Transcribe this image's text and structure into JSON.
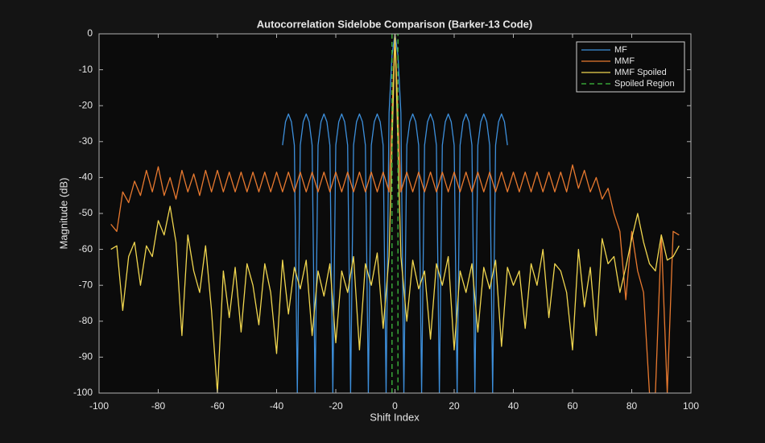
{
  "chart_data": {
    "type": "line",
    "title": "Autocorrelation Sidelobe Comparison (Barker-13 Code)",
    "xlabel": "Shift Index",
    "ylabel": "Magnitude (dB)",
    "xlim": [
      -100,
      100
    ],
    "ylim": [
      -100,
      0
    ],
    "xticks": [
      -100,
      -80,
      -60,
      -40,
      -20,
      0,
      20,
      40,
      60,
      80,
      100
    ],
    "yticks": [
      0,
      -10,
      -20,
      -30,
      -40,
      -50,
      -60,
      -70,
      -80,
      -90,
      -100
    ],
    "grid": false,
    "legend_position": "northeast",
    "series": [
      {
        "name": "MF",
        "color": "#3d8fdb",
        "line_style": "solid",
        "x": [
          -38,
          -37,
          -36,
          -35,
          -34,
          -33,
          -32,
          -31,
          -30,
          -29,
          -28,
          -27,
          -26,
          -25,
          -24,
          -23,
          -22,
          -21,
          -20,
          -19,
          -18,
          -17,
          -16,
          -15,
          -14,
          -13,
          -12,
          -11,
          -10,
          -9,
          -8,
          -7,
          -6,
          -5,
          -4,
          -3,
          -2,
          -1,
          0,
          1,
          2,
          3,
          4,
          5,
          6,
          7,
          8,
          9,
          10,
          11,
          12,
          13,
          14,
          15,
          16,
          17,
          18,
          19,
          20,
          21,
          22,
          23,
          24,
          25,
          26,
          27,
          28,
          29,
          30,
          31,
          32,
          33,
          34,
          35,
          36,
          37,
          38
        ],
        "values": [
          -31,
          -24.5,
          -22.3,
          -24.5,
          -31,
          -100,
          -31,
          -24.5,
          -22.3,
          -24.5,
          -31,
          -100,
          -31,
          -24.5,
          -22.3,
          -24.5,
          -31,
          -100,
          -31,
          -24.5,
          -22.3,
          -24.5,
          -31,
          -100,
          -31,
          -24.5,
          -22.3,
          -24.5,
          -31,
          -100,
          -31,
          -24.5,
          -22.3,
          -24.5,
          -31,
          -100,
          -22,
          -6,
          0,
          -6,
          -22,
          -100,
          -31,
          -24.5,
          -22.3,
          -24.5,
          -31,
          -100,
          -31,
          -24.5,
          -22.3,
          -24.5,
          -31,
          -100,
          -31,
          -24.5,
          -22.3,
          -24.5,
          -31,
          -100,
          -31,
          -24.5,
          -22.3,
          -24.5,
          -31,
          -100,
          -31,
          -24.5,
          -22.3,
          -24.5,
          -31,
          -100,
          -31,
          -24.5,
          -22.3,
          -24.5,
          -31
        ]
      },
      {
        "name": "MMF",
        "color": "#e8792f",
        "line_style": "solid",
        "x": [
          -96,
          -94,
          -92,
          -90,
          -88,
          -86,
          -84,
          -82,
          -80,
          -78,
          -76,
          -74,
          -72,
          -70,
          -68,
          -66,
          -64,
          -62,
          -60,
          -58,
          -56,
          -54,
          -52,
          -50,
          -48,
          -46,
          -44,
          -42,
          -40,
          -38,
          -36,
          -34,
          -32,
          -30,
          -28,
          -26,
          -24,
          -22,
          -20,
          -18,
          -16,
          -14,
          -12,
          -10,
          -8,
          -6,
          -4,
          -2,
          0,
          2,
          4,
          6,
          8,
          10,
          12,
          14,
          16,
          18,
          20,
          22,
          24,
          26,
          28,
          30,
          32,
          34,
          36,
          38,
          40,
          42,
          44,
          46,
          48,
          50,
          52,
          54,
          56,
          58,
          60,
          62,
          64,
          66,
          68,
          70,
          72,
          74,
          76,
          78,
          80,
          82,
          84,
          86,
          88,
          90,
          92,
          94,
          96
        ],
        "values": [
          -53,
          -55,
          -44,
          -47,
          -41,
          -45,
          -38,
          -44,
          -37,
          -45,
          -40,
          -46,
          -38,
          -44,
          -39,
          -45,
          -38,
          -44,
          -38,
          -44,
          -38.5,
          -44,
          -38.5,
          -44,
          -38.5,
          -44,
          -38.5,
          -44,
          -38.5,
          -44,
          -38.5,
          -44,
          -38.5,
          -44,
          -38.5,
          -44,
          -38.5,
          -44,
          -38.5,
          -44,
          -38.5,
          -44,
          -38.5,
          -44,
          -38.5,
          -44,
          -38.5,
          -44,
          0,
          -44,
          -38.5,
          -44,
          -38.5,
          -44,
          -38.5,
          -44,
          -38.5,
          -44,
          -38.5,
          -44,
          -38.5,
          -44,
          -38.5,
          -44,
          -38.5,
          -44,
          -38.5,
          -44,
          -38.5,
          -44,
          -38.5,
          -44,
          -38.5,
          -44,
          -38.5,
          -44,
          -38.5,
          -44,
          -36.5,
          -43,
          -38,
          -44,
          -40,
          -46,
          -43,
          -50,
          -55,
          -74,
          -55,
          -66,
          -72,
          -100,
          -100,
          -56,
          -100,
          -55,
          -56
        ]
      },
      {
        "name": "MMF Spoiled",
        "color": "#f0d64f",
        "line_style": "solid",
        "x": [
          -96,
          -94,
          -92,
          -90,
          -88,
          -86,
          -84,
          -82,
          -80,
          -78,
          -76,
          -74,
          -72,
          -70,
          -68,
          -66,
          -64,
          -62,
          -60,
          -58,
          -56,
          -54,
          -52,
          -50,
          -48,
          -46,
          -44,
          -42,
          -40,
          -38,
          -36,
          -34,
          -32,
          -30,
          -28,
          -26,
          -24,
          -22,
          -20,
          -18,
          -16,
          -14,
          -12,
          -10,
          -8,
          -6,
          -4,
          -2,
          0,
          2,
          4,
          6,
          8,
          10,
          12,
          14,
          16,
          18,
          20,
          22,
          24,
          26,
          28,
          30,
          32,
          34,
          36,
          38,
          40,
          42,
          44,
          46,
          48,
          50,
          52,
          54,
          56,
          58,
          60,
          62,
          64,
          66,
          68,
          70,
          72,
          74,
          76,
          78,
          80,
          82,
          84,
          86,
          88,
          90,
          92,
          94,
          96
        ],
        "values": [
          -60,
          -59,
          -77,
          -62,
          -58,
          -70,
          -59,
          -62,
          -52,
          -56,
          -48,
          -58,
          -84,
          -56,
          -66,
          -72,
          -59,
          -77,
          -100,
          -66,
          -79,
          -65,
          -83,
          -64,
          -70,
          -81,
          -64,
          -72,
          -89,
          -63,
          -78,
          -65,
          -71,
          -63,
          -84,
          -66,
          -73,
          -64,
          -86,
          -66,
          -72,
          -62,
          -88,
          -64,
          -70,
          -61,
          -82,
          -62,
          0,
          -62,
          -80,
          -63,
          -71,
          -66,
          -85,
          -64,
          -70,
          -62,
          -88,
          -66,
          -72,
          -64,
          -83,
          -65,
          -71,
          -63,
          -87,
          -65,
          -70,
          -66,
          -82,
          -64,
          -70,
          -60,
          -79,
          -64,
          -66,
          -72,
          -88,
          -60,
          -76,
          -65,
          -84,
          -57,
          -64,
          -62,
          -72,
          -65,
          -57,
          -50,
          -58,
          -64,
          -66,
          -56,
          -63,
          -62,
          -59
        ]
      },
      {
        "name": "Spoiled Region",
        "color": "#3fbf3f",
        "line_style": "dashed",
        "x": [
          -1,
          -1,
          1,
          1
        ],
        "values": [
          -100,
          0,
          0,
          -100
        ]
      }
    ]
  }
}
